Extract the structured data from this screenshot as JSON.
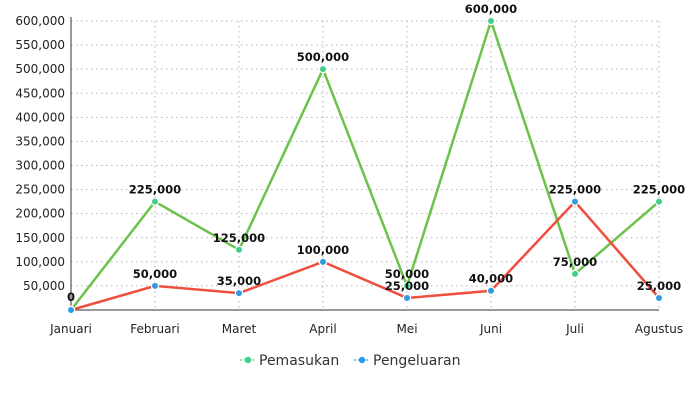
{
  "chart_data": {
    "type": "line",
    "title": "",
    "xlabel": "",
    "ylabel": "",
    "categories": [
      "Januari",
      "Februari",
      "Maret",
      "April",
      "Mei",
      "Juni",
      "Juli",
      "Agustus"
    ],
    "ylim": [
      0,
      600000
    ],
    "yticks": [
      50000,
      100000,
      150000,
      200000,
      250000,
      300000,
      350000,
      400000,
      450000,
      500000,
      550000,
      600000
    ],
    "ytick_labels": [
      "50,000",
      "100,000",
      "150,000",
      "200,000",
      "250,000",
      "300,000",
      "350,000",
      "400,000",
      "450,000",
      "500,000",
      "550,000",
      "600,000"
    ],
    "grid": true,
    "legend": "bottom-center",
    "series": [
      {
        "name": "Pemasukan",
        "color": "#6cc24a",
        "marker_color": "#3fcf86",
        "values": [
          0,
          225000,
          125000,
          500000,
          50000,
          600000,
          75000,
          225000
        ],
        "labels": [
          "0",
          "225,000",
          "125,000",
          "500,000",
          "50,000",
          "600,000",
          "75,000",
          "225,000"
        ]
      },
      {
        "name": "Pengeluaran",
        "color": "#f04e3e",
        "marker_color": "#2f9be0",
        "values": [
          0,
          50000,
          35000,
          100000,
          25000,
          40000,
          225000,
          25000
        ],
        "labels": [
          "",
          "50,000",
          "35,000",
          "100,000",
          "25,000",
          "40,000",
          "225,000",
          "25,000"
        ]
      }
    ]
  }
}
